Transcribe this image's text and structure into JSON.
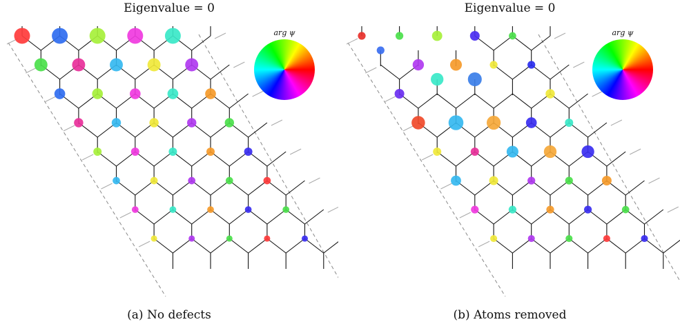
{
  "figure": {
    "panels": [
      {
        "title": "Eigenvalue = 0",
        "caption": "(a) No defects",
        "legend_label": "arg ψ",
        "removed_sites": [],
        "sites": [
          {
            "row": 0,
            "col": 0,
            "color": "#ff3b3b",
            "weight": 1.0
          },
          {
            "row": 0,
            "col": 1,
            "color": "#2f6df0",
            "weight": 1.0
          },
          {
            "row": 0,
            "col": 2,
            "color": "#a6f03a",
            "weight": 1.0
          },
          {
            "row": 0,
            "col": 3,
            "color": "#f03ae0",
            "weight": 1.0
          },
          {
            "row": 0,
            "col": 4,
            "color": "#3ae8c8",
            "weight": 1.0
          },
          {
            "row": 2,
            "col": 0,
            "color": "#4be04b",
            "weight": 0.6
          },
          {
            "row": 2,
            "col": 1,
            "color": "#e8309a",
            "weight": 0.6
          },
          {
            "row": 2,
            "col": 2,
            "color": "#35b9f0",
            "weight": 0.6
          },
          {
            "row": 2,
            "col": 3,
            "color": "#f0e83a",
            "weight": 0.6
          },
          {
            "row": 2,
            "col": 4,
            "color": "#b03af0",
            "weight": 0.6
          },
          {
            "row": 4,
            "col": 0,
            "color": "#2f6df0",
            "weight": 0.35
          },
          {
            "row": 4,
            "col": 1,
            "color": "#a6f03a",
            "weight": 0.35
          },
          {
            "row": 4,
            "col": 2,
            "color": "#f03ae0",
            "weight": 0.35
          },
          {
            "row": 4,
            "col": 3,
            "color": "#3ae8c8",
            "weight": 0.35
          },
          {
            "row": 4,
            "col": 4,
            "color": "#f59a2a",
            "weight": 0.35
          },
          {
            "row": 6,
            "col": 0,
            "color": "#e8309a",
            "weight": 0.22
          },
          {
            "row": 6,
            "col": 1,
            "color": "#35b9f0",
            "weight": 0.22
          },
          {
            "row": 6,
            "col": 2,
            "color": "#f0e83a",
            "weight": 0.22
          },
          {
            "row": 6,
            "col": 3,
            "color": "#b03af0",
            "weight": 0.22
          },
          {
            "row": 6,
            "col": 4,
            "color": "#4be04b",
            "weight": 0.22
          },
          {
            "row": 8,
            "col": 0,
            "color": "#a6f03a",
            "weight": 0.15
          },
          {
            "row": 8,
            "col": 1,
            "color": "#f03ae0",
            "weight": 0.15
          },
          {
            "row": 8,
            "col": 2,
            "color": "#3ae8c8",
            "weight": 0.15
          },
          {
            "row": 8,
            "col": 3,
            "color": "#f59a2a",
            "weight": 0.15
          },
          {
            "row": 8,
            "col": 4,
            "color": "#3a2ef0",
            "weight": 0.15
          },
          {
            "row": 10,
            "col": 0,
            "color": "#35b9f0",
            "weight": 0.1
          },
          {
            "row": 10,
            "col": 1,
            "color": "#f0e83a",
            "weight": 0.1
          },
          {
            "row": 10,
            "col": 2,
            "color": "#b03af0",
            "weight": 0.1
          },
          {
            "row": 10,
            "col": 3,
            "color": "#4be04b",
            "weight": 0.1
          },
          {
            "row": 10,
            "col": 4,
            "color": "#ff3b3b",
            "weight": 0.1
          },
          {
            "row": 12,
            "col": 0,
            "color": "#f03ae0",
            "weight": 0.07
          },
          {
            "row": 12,
            "col": 1,
            "color": "#3ae8c8",
            "weight": 0.07
          },
          {
            "row": 12,
            "col": 2,
            "color": "#f59a2a",
            "weight": 0.07
          },
          {
            "row": 12,
            "col": 3,
            "color": "#3a2ef0",
            "weight": 0.07
          },
          {
            "row": 12,
            "col": 4,
            "color": "#4be04b",
            "weight": 0.07
          },
          {
            "row": 14,
            "col": 0,
            "color": "#f0e83a",
            "weight": 0.05
          },
          {
            "row": 14,
            "col": 1,
            "color": "#b03af0",
            "weight": 0.05
          },
          {
            "row": 14,
            "col": 2,
            "color": "#4be04b",
            "weight": 0.05
          },
          {
            "row": 14,
            "col": 3,
            "color": "#ff3b3b",
            "weight": 0.05
          },
          {
            "row": 14,
            "col": 4,
            "color": "#3a2ef0",
            "weight": 0.05
          }
        ]
      },
      {
        "title": "Eigenvalue = 0",
        "caption": "(b) Atoms removed",
        "legend_label": "arg ψ",
        "removed_sites": [
          [
            0,
            0
          ],
          [
            0,
            1
          ],
          [
            1,
            0
          ],
          [
            1,
            1
          ],
          [
            2,
            1
          ],
          [
            3,
            0
          ],
          [
            0,
            2
          ],
          [
            1,
            2
          ],
          [
            2,
            2
          ],
          [
            3,
            1
          ]
        ],
        "sites": [
          {
            "row": 0,
            "col": 0,
            "color": "#e8302a",
            "weight": 0.12
          },
          {
            "row": 0,
            "col": 1,
            "color": "#4be04b",
            "weight": 0.12
          },
          {
            "row": 0,
            "col": 2,
            "color": "#a6f03a",
            "weight": 0.3
          },
          {
            "row": 0,
            "col": 3,
            "color": "#4a2ef0",
            "weight": 0.25
          },
          {
            "row": 0,
            "col": 4,
            "color": "#4be04b",
            "weight": 0.1
          },
          {
            "row": 1,
            "col": 0,
            "color": "#3a6ef0",
            "weight": 0.12
          },
          {
            "row": 2,
            "col": 1,
            "color": "#b03af0",
            "weight": 0.4
          },
          {
            "row": 2,
            "col": 2,
            "color": "#f59a2a",
            "weight": 0.45
          },
          {
            "row": 2,
            "col": 3,
            "color": "#f0e83a",
            "weight": 0.12
          },
          {
            "row": 2,
            "col": 4,
            "color": "#2a2ef0",
            "weight": 0.12
          },
          {
            "row": 3,
            "col": 1,
            "color": "#3ae8c8",
            "weight": 0.55
          },
          {
            "row": 3,
            "col": 2,
            "color": "#3a7ee8",
            "weight": 0.7
          },
          {
            "row": 4,
            "col": 0,
            "color": "#6a2ef0",
            "weight": 0.25
          },
          {
            "row": 4,
            "col": 4,
            "color": "#f0e83a",
            "weight": 0.22
          },
          {
            "row": 6,
            "col": 0,
            "color": "#f04a2a",
            "weight": 0.65
          },
          {
            "row": 6,
            "col": 1,
            "color": "#35b9f0",
            "weight": 0.85
          },
          {
            "row": 6,
            "col": 2,
            "color": "#f5a83a",
            "weight": 0.72
          },
          {
            "row": 6,
            "col": 3,
            "color": "#3a2ef0",
            "weight": 0.35
          },
          {
            "row": 6,
            "col": 4,
            "color": "#3ae8c8",
            "weight": 0.15
          },
          {
            "row": 8,
            "col": 0,
            "color": "#f0e83a",
            "weight": 0.15
          },
          {
            "row": 8,
            "col": 1,
            "color": "#e8309a",
            "weight": 0.15
          },
          {
            "row": 8,
            "col": 2,
            "color": "#35b9f0",
            "weight": 0.45
          },
          {
            "row": 8,
            "col": 3,
            "color": "#f5a83a",
            "weight": 0.55
          },
          {
            "row": 8,
            "col": 4,
            "color": "#3a2ef0",
            "weight": 0.55
          },
          {
            "row": 10,
            "col": 0,
            "color": "#35b9f0",
            "weight": 0.3
          },
          {
            "row": 10,
            "col": 1,
            "color": "#f0e83a",
            "weight": 0.2
          },
          {
            "row": 10,
            "col": 2,
            "color": "#b03af0",
            "weight": 0.12
          },
          {
            "row": 10,
            "col": 3,
            "color": "#4be04b",
            "weight": 0.12
          },
          {
            "row": 10,
            "col": 4,
            "color": "#f59a2a",
            "weight": 0.25
          },
          {
            "row": 12,
            "col": 0,
            "color": "#f03ae0",
            "weight": 0.12
          },
          {
            "row": 12,
            "col": 1,
            "color": "#3ae8c8",
            "weight": 0.12
          },
          {
            "row": 12,
            "col": 2,
            "color": "#f59a2a",
            "weight": 0.12
          },
          {
            "row": 12,
            "col": 3,
            "color": "#3a2ef0",
            "weight": 0.12
          },
          {
            "row": 12,
            "col": 4,
            "color": "#4be04b",
            "weight": 0.1
          },
          {
            "row": 14,
            "col": 0,
            "color": "#f0e83a",
            "weight": 0.08
          },
          {
            "row": 14,
            "col": 1,
            "color": "#b03af0",
            "weight": 0.08
          },
          {
            "row": 14,
            "col": 2,
            "color": "#4be04b",
            "weight": 0.08
          },
          {
            "row": 14,
            "col": 3,
            "color": "#ff3b3b",
            "weight": 0.08
          },
          {
            "row": 14,
            "col": 4,
            "color": "#3a2ef0",
            "weight": 0.08
          }
        ]
      }
    ]
  }
}
